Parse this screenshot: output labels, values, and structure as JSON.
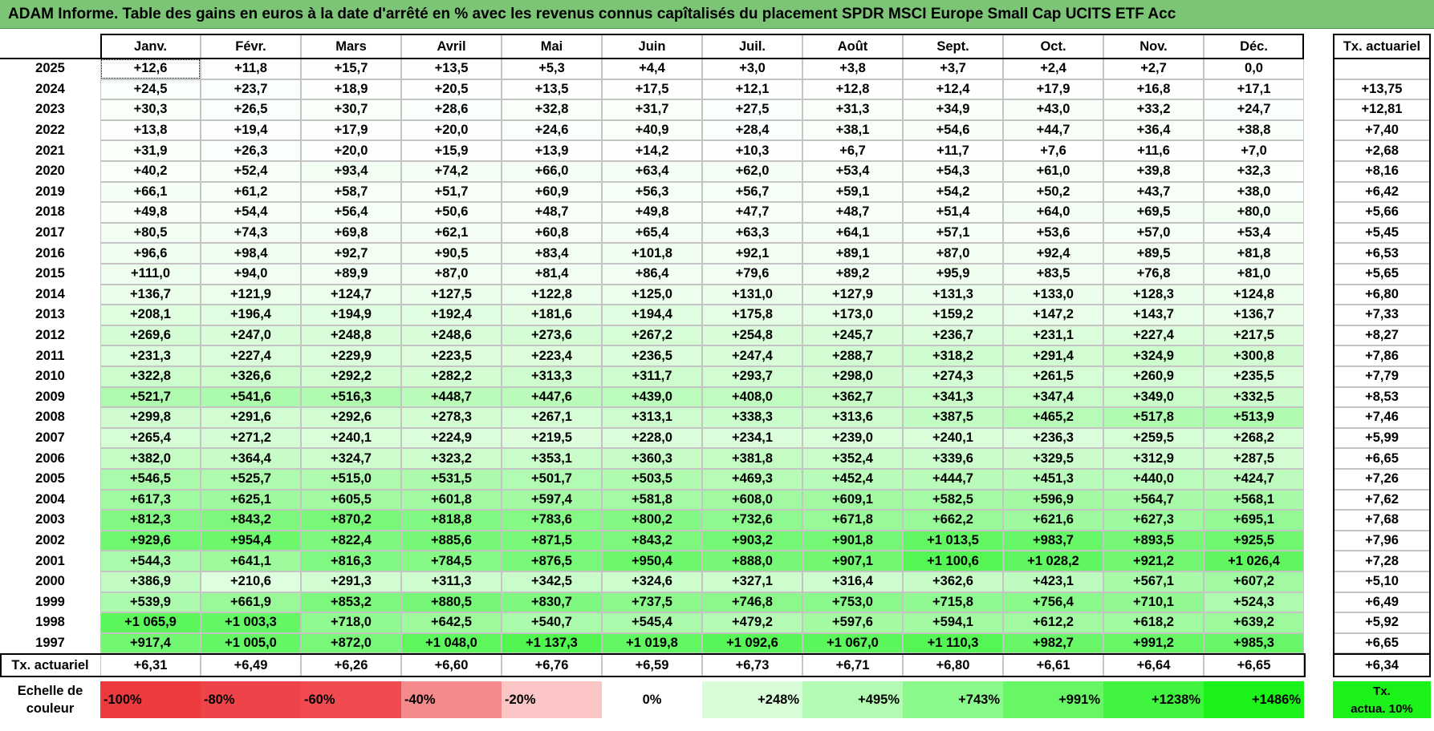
{
  "title": "ADAM Informe. Table des gains en euros à la date d'arrêté en % avec les revenus connus capîtalisés du placement SPDR MSCI Europe Small Cap UCITS ETF Acc",
  "chart_data": {
    "type": "table",
    "columns": [
      "Janv.",
      "Févr.",
      "Mars",
      "Avril",
      "Mai",
      "Juin",
      "Juil.",
      "Août",
      "Sept.",
      "Oct.",
      "Nov.",
      "Déc."
    ],
    "rate_header": "Tx. actuariel",
    "rows": [
      {
        "year": "2025",
        "values": [
          "+12,6",
          "+11,8",
          "+15,7",
          "+13,5",
          "+5,3",
          "+4,4",
          "+3,0",
          "+3,8",
          "+3,7",
          "+2,4",
          "+2,7",
          "0,0"
        ],
        "rate": ""
      },
      {
        "year": "2024",
        "values": [
          "+24,5",
          "+23,7",
          "+18,9",
          "+20,5",
          "+13,5",
          "+17,5",
          "+12,1",
          "+12,8",
          "+12,4",
          "+17,9",
          "+16,8",
          "+17,1"
        ],
        "rate": "+13,75"
      },
      {
        "year": "2023",
        "values": [
          "+30,3",
          "+26,5",
          "+30,7",
          "+28,6",
          "+32,8",
          "+31,7",
          "+27,5",
          "+31,3",
          "+34,9",
          "+43,0",
          "+33,2",
          "+24,7"
        ],
        "rate": "+12,81"
      },
      {
        "year": "2022",
        "values": [
          "+13,8",
          "+19,4",
          "+17,9",
          "+20,0",
          "+24,6",
          "+40,9",
          "+28,4",
          "+38,1",
          "+54,6",
          "+44,7",
          "+36,4",
          "+38,8"
        ],
        "rate": "+7,40"
      },
      {
        "year": "2021",
        "values": [
          "+31,9",
          "+26,3",
          "+20,0",
          "+15,9",
          "+13,9",
          "+14,2",
          "+10,3",
          "+6,7",
          "+11,7",
          "+7,6",
          "+11,6",
          "+7,0"
        ],
        "rate": "+2,68"
      },
      {
        "year": "2020",
        "values": [
          "+40,2",
          "+52,4",
          "+93,4",
          "+74,2",
          "+66,0",
          "+63,4",
          "+62,0",
          "+53,4",
          "+54,3",
          "+61,0",
          "+39,8",
          "+32,3"
        ],
        "rate": "+8,16"
      },
      {
        "year": "2019",
        "values": [
          "+66,1",
          "+61,2",
          "+58,7",
          "+51,7",
          "+60,9",
          "+56,3",
          "+56,7",
          "+59,1",
          "+54,2",
          "+50,2",
          "+43,7",
          "+38,0"
        ],
        "rate": "+6,42"
      },
      {
        "year": "2018",
        "values": [
          "+49,8",
          "+54,4",
          "+56,4",
          "+50,6",
          "+48,7",
          "+49,8",
          "+47,7",
          "+48,7",
          "+51,4",
          "+64,0",
          "+69,5",
          "+80,0"
        ],
        "rate": "+5,66"
      },
      {
        "year": "2017",
        "values": [
          "+80,5",
          "+74,3",
          "+69,8",
          "+62,1",
          "+60,8",
          "+65,4",
          "+63,3",
          "+64,1",
          "+57,1",
          "+53,6",
          "+57,0",
          "+53,4"
        ],
        "rate": "+5,45"
      },
      {
        "year": "2016",
        "values": [
          "+96,6",
          "+98,4",
          "+92,7",
          "+90,5",
          "+83,4",
          "+101,8",
          "+92,1",
          "+89,1",
          "+87,0",
          "+92,4",
          "+89,5",
          "+81,8"
        ],
        "rate": "+6,53"
      },
      {
        "year": "2015",
        "values": [
          "+111,0",
          "+94,0",
          "+89,9",
          "+87,0",
          "+81,4",
          "+86,4",
          "+79,6",
          "+89,2",
          "+95,9",
          "+83,5",
          "+76,8",
          "+81,0"
        ],
        "rate": "+5,65"
      },
      {
        "year": "2014",
        "values": [
          "+136,7",
          "+121,9",
          "+124,7",
          "+127,5",
          "+122,8",
          "+125,0",
          "+131,0",
          "+127,9",
          "+131,3",
          "+133,0",
          "+128,3",
          "+124,8"
        ],
        "rate": "+6,80"
      },
      {
        "year": "2013",
        "values": [
          "+208,1",
          "+196,4",
          "+194,9",
          "+192,4",
          "+181,6",
          "+194,4",
          "+175,8",
          "+173,0",
          "+159,2",
          "+147,2",
          "+143,7",
          "+136,7"
        ],
        "rate": "+7,33"
      },
      {
        "year": "2012",
        "values": [
          "+269,6",
          "+247,0",
          "+248,8",
          "+248,6",
          "+273,6",
          "+267,2",
          "+254,8",
          "+245,7",
          "+236,7",
          "+231,1",
          "+227,4",
          "+217,5"
        ],
        "rate": "+8,27"
      },
      {
        "year": "2011",
        "values": [
          "+231,3",
          "+227,4",
          "+229,9",
          "+223,5",
          "+223,4",
          "+236,5",
          "+247,4",
          "+288,7",
          "+318,2",
          "+291,4",
          "+324,9",
          "+300,8"
        ],
        "rate": "+7,86"
      },
      {
        "year": "2010",
        "values": [
          "+322,8",
          "+326,6",
          "+292,2",
          "+282,2",
          "+313,3",
          "+311,7",
          "+293,7",
          "+298,0",
          "+274,3",
          "+261,5",
          "+260,9",
          "+235,5"
        ],
        "rate": "+7,79"
      },
      {
        "year": "2009",
        "values": [
          "+521,7",
          "+541,6",
          "+516,3",
          "+448,7",
          "+447,6",
          "+439,0",
          "+408,0",
          "+362,7",
          "+341,3",
          "+347,4",
          "+349,0",
          "+332,5"
        ],
        "rate": "+8,53"
      },
      {
        "year": "2008",
        "values": [
          "+299,8",
          "+291,6",
          "+292,6",
          "+278,3",
          "+267,1",
          "+313,1",
          "+338,3",
          "+313,6",
          "+387,5",
          "+465,2",
          "+517,8",
          "+513,9"
        ],
        "rate": "+7,46"
      },
      {
        "year": "2007",
        "values": [
          "+265,4",
          "+271,2",
          "+240,1",
          "+224,9",
          "+219,5",
          "+228,0",
          "+234,1",
          "+239,0",
          "+240,1",
          "+236,3",
          "+259,5",
          "+268,2"
        ],
        "rate": "+5,99"
      },
      {
        "year": "2006",
        "values": [
          "+382,0",
          "+364,4",
          "+324,7",
          "+323,2",
          "+353,1",
          "+360,3",
          "+381,8",
          "+352,4",
          "+339,6",
          "+329,5",
          "+312,9",
          "+287,5"
        ],
        "rate": "+6,65"
      },
      {
        "year": "2005",
        "values": [
          "+546,5",
          "+525,7",
          "+515,0",
          "+531,5",
          "+501,7",
          "+503,5",
          "+469,3",
          "+452,4",
          "+444,7",
          "+451,3",
          "+440,0",
          "+424,7"
        ],
        "rate": "+7,26"
      },
      {
        "year": "2004",
        "values": [
          "+617,3",
          "+625,1",
          "+605,5",
          "+601,8",
          "+597,4",
          "+581,8",
          "+608,0",
          "+609,1",
          "+582,5",
          "+596,9",
          "+564,7",
          "+568,1"
        ],
        "rate": "+7,62"
      },
      {
        "year": "2003",
        "values": [
          "+812,3",
          "+843,2",
          "+870,2",
          "+818,8",
          "+783,6",
          "+800,2",
          "+732,6",
          "+671,8",
          "+662,2",
          "+621,6",
          "+627,3",
          "+695,1"
        ],
        "rate": "+7,68"
      },
      {
        "year": "2002",
        "values": [
          "+929,6",
          "+954,4",
          "+822,4",
          "+885,6",
          "+871,5",
          "+843,2",
          "+903,2",
          "+901,8",
          "+1 013,5",
          "+983,7",
          "+893,5",
          "+925,5"
        ],
        "rate": "+7,96"
      },
      {
        "year": "2001",
        "values": [
          "+544,3",
          "+641,1",
          "+816,3",
          "+784,5",
          "+876,5",
          "+950,4",
          "+888,0",
          "+907,1",
          "+1 100,6",
          "+1 028,2",
          "+921,2",
          "+1 026,4"
        ],
        "rate": "+7,28"
      },
      {
        "year": "2000",
        "values": [
          "+386,9",
          "+210,6",
          "+291,3",
          "+311,3",
          "+342,5",
          "+324,6",
          "+327,1",
          "+316,4",
          "+362,6",
          "+423,1",
          "+567,1",
          "+607,2"
        ],
        "rate": "+5,10"
      },
      {
        "year": "1999",
        "values": [
          "+539,9",
          "+661,9",
          "+853,2",
          "+880,5",
          "+830,7",
          "+737,5",
          "+746,8",
          "+753,0",
          "+715,8",
          "+756,4",
          "+710,1",
          "+524,3"
        ],
        "rate": "+6,49"
      },
      {
        "year": "1998",
        "values": [
          "+1 065,9",
          "+1 003,3",
          "+718,0",
          "+642,5",
          "+540,7",
          "+545,4",
          "+479,2",
          "+597,6",
          "+594,1",
          "+612,2",
          "+618,2",
          "+639,2"
        ],
        "rate": "+5,92"
      },
      {
        "year": "1997",
        "values": [
          "+917,4",
          "+1 005,0",
          "+872,0",
          "+1 048,0",
          "+1 137,3",
          "+1 019,8",
          "+1 092,6",
          "+1 067,0",
          "+1 110,3",
          "+982,7",
          "+991,2",
          "+985,3"
        ],
        "rate": "+6,65"
      }
    ],
    "footer_label": "Tx. actuariel",
    "footer_values": [
      "+6,31",
      "+6,49",
      "+6,26",
      "+6,60",
      "+6,76",
      "+6,59",
      "+6,73",
      "+6,71",
      "+6,80",
      "+6,61",
      "+6,64",
      "+6,65"
    ],
    "footer_rate": "+6,34",
    "color_scale_max": 1486
  },
  "legend": {
    "label_line1": "Echelle de",
    "label_line2": "couleur",
    "swatches": [
      {
        "label": "-100%",
        "color": "#ec3a3f",
        "kind": "neg"
      },
      {
        "label": "-80%",
        "color": "#ee4449",
        "kind": "neg"
      },
      {
        "label": "-60%",
        "color": "#f14b50",
        "kind": "neg"
      },
      {
        "label": "-40%",
        "color": "#f58a8d",
        "kind": "neg"
      },
      {
        "label": "-20%",
        "color": "#fbc4c5",
        "kind": "neg"
      },
      {
        "label": "0%",
        "color": "#ffffff",
        "kind": "zero"
      },
      {
        "label": "+248%",
        "color": "#d9fdd9",
        "kind": "pos"
      },
      {
        "label": "+495%",
        "color": "#b3fbb3",
        "kind": "pos"
      },
      {
        "label": "+743%",
        "color": "#8cf98c",
        "kind": "pos"
      },
      {
        "label": "+991%",
        "color": "#66f666",
        "kind": "pos"
      },
      {
        "label": "+1238%",
        "color": "#40f440",
        "kind": "pos"
      },
      {
        "label": "+1486%",
        "color": "#1af21a",
        "kind": "pos"
      }
    ],
    "rate_swatch_line1": "Tx.",
    "rate_swatch_line2": "actua. 10%",
    "rate_swatch_color": "#1af21a"
  }
}
